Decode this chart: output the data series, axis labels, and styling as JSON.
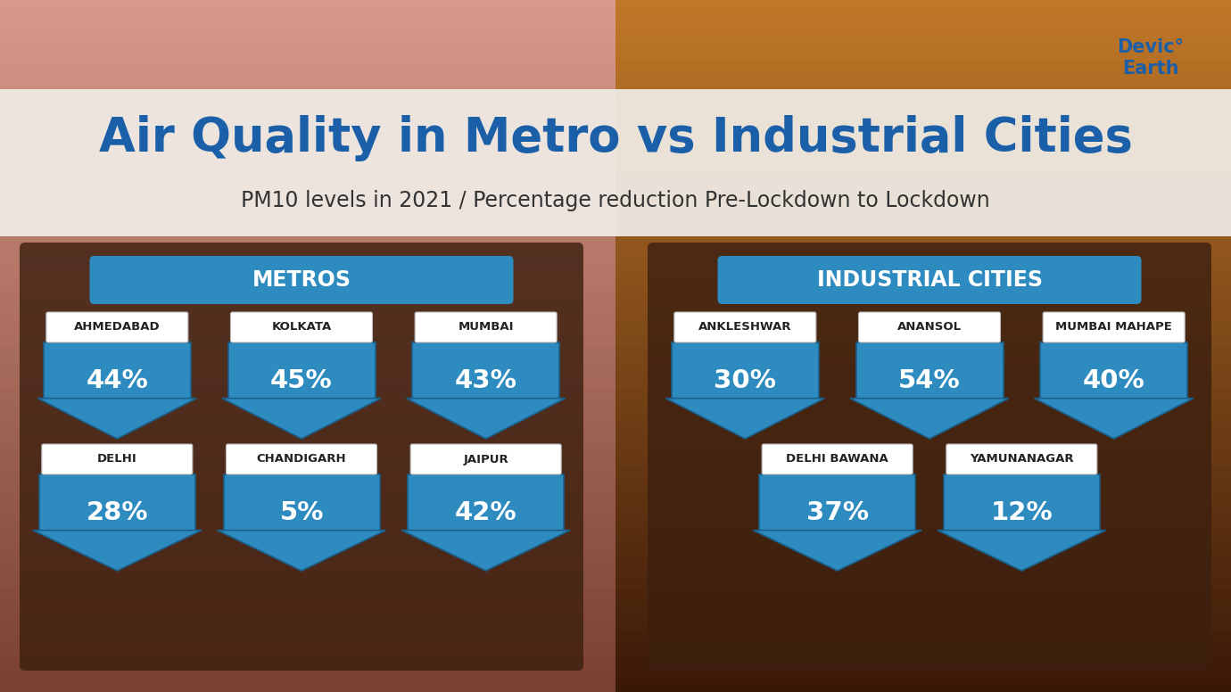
{
  "title": "Air Quality in Metro vs Industrial Cities",
  "subtitle": "PM10 levels in 2021 / Percentage reduction Pre-Lockdown to Lockdown",
  "title_color": "#1a5fa8",
  "subtitle_color": "#333333",
  "arrow_color": "#2e8bc0",
  "arrow_dark_color": "#1a5f8a",
  "arrow_lighter_color": "#4aa3d4",
  "header_bg_color": "#2e8bc0",
  "label_bg_color": "#ffffff",
  "label_text_color": "#222222",
  "value_text_color": "#ffffff",
  "header_text_color": "#ffffff",
  "panel_bg_color": "#3d2010",
  "left_bg_top": "#c98080",
  "left_bg_bottom": "#a06040",
  "right_bg_top": "#c87020",
  "right_bg_bottom": "#703010",
  "title_bar_color": "#f0ece6",
  "metros": {
    "header": "METROS",
    "row1": [
      {
        "city": "AHMEDABAD",
        "pct": "44%"
      },
      {
        "city": "KOLKATA",
        "pct": "45%"
      },
      {
        "city": "MUMBAI",
        "pct": "43%"
      }
    ],
    "row2": [
      {
        "city": "DELHI",
        "pct": "28%"
      },
      {
        "city": "CHANDIGARH",
        "pct": "5%"
      },
      {
        "city": "JAIPUR",
        "pct": "42%"
      }
    ]
  },
  "industrial": {
    "header": "INDUSTRIAL CITIES",
    "row1": [
      {
        "city": "ANKLESHWAR",
        "pct": "30%"
      },
      {
        "city": "ANANSOL",
        "pct": "54%"
      },
      {
        "city": "MUMBAI MAHAPE",
        "pct": "40%"
      }
    ],
    "row2": [
      {
        "city": "DELHI BAWANA",
        "pct": "37%"
      },
      {
        "city": "YAMUNANAGAR",
        "pct": "12%"
      }
    ]
  },
  "figsize": [
    13.8,
    7.76
  ],
  "dpi": 100
}
